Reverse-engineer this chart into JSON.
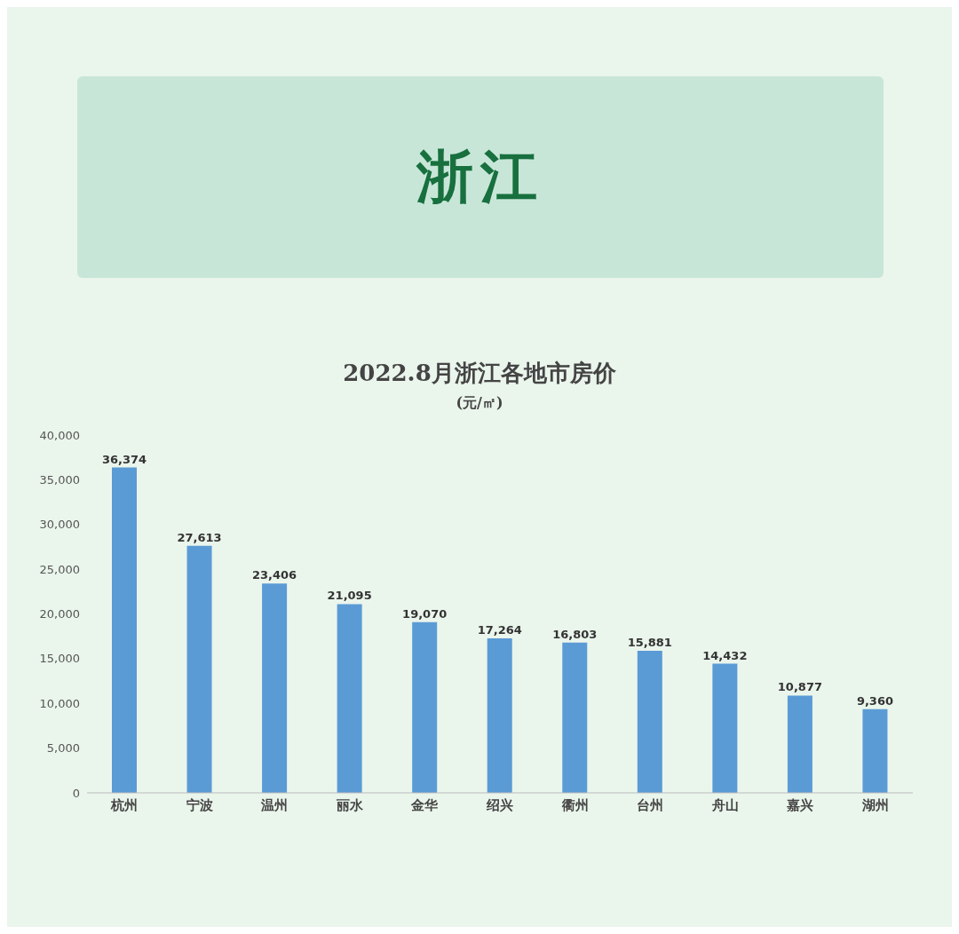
{
  "chart_data": {
    "type": "bar",
    "title": "浙江",
    "subtitle": "2022.8月浙江各地市房价",
    "annotations": [
      "(元/㎡)"
    ],
    "categories": [
      "杭州",
      "宁波",
      "温州",
      "丽水",
      "金华",
      "绍兴",
      "衢州",
      "台州",
      "舟山",
      "嘉兴",
      "湖州"
    ],
    "values": [
      36374,
      27613,
      23406,
      21095,
      19070,
      17264,
      16803,
      15881,
      14432,
      10877,
      9360
    ],
    "value_labels": [
      "36,374",
      "27,613",
      "23,406",
      "21,095",
      "19,070",
      "17,264",
      "16,803",
      "15,881",
      "14,432",
      "10,877",
      "9,360"
    ],
    "color": "#5b9bd5",
    "ylim": [
      0,
      40000
    ],
    "yticks": [
      {
        "value": 0,
        "label": "0"
      },
      {
        "value": 5000,
        "label": "5,000"
      },
      {
        "value": 10000,
        "label": "10,000"
      },
      {
        "value": 15000,
        "label": "15,000"
      },
      {
        "value": 20000,
        "label": "20,000"
      },
      {
        "value": 25000,
        "label": "25,000"
      },
      {
        "value": 30000,
        "label": "30,000"
      },
      {
        "value": 35000,
        "label": "35,000"
      },
      {
        "value": 40000,
        "label": "40,000"
      }
    ],
    "grid": false,
    "legend": false
  }
}
